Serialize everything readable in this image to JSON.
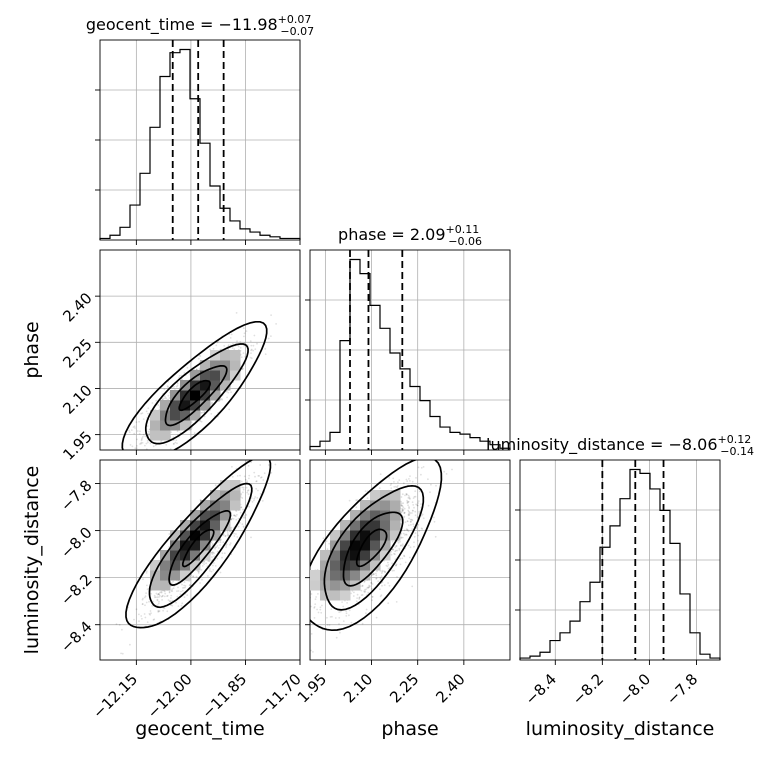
{
  "chart_data": {
    "type": "corner",
    "parameters": [
      {
        "name": "geocent_time",
        "title": {
          "prefix": "geocent_time = ",
          "median": "−11.98",
          "plus": "+0.07",
          "minus": "−0.07"
        },
        "range": [
          -12.25,
          -11.7
        ],
        "ticks": [
          "−12.15",
          "−12.00",
          "−11.85",
          "−11.70"
        ],
        "tick_values": [
          -12.15,
          -12.0,
          -11.85,
          -11.7
        ],
        "quantiles": [
          -12.05,
          -11.98,
          -11.91
        ],
        "hist_edges": [
          -12.25,
          -12.2225,
          -12.195,
          -12.1675,
          -12.14,
          -12.1125,
          -12.085,
          -12.0575,
          -12.03,
          -12.0025,
          -11.975,
          -11.9475,
          -11.92,
          -11.8925,
          -11.865,
          -11.8375,
          -11.81,
          -11.7825,
          -11.755,
          -11.7275,
          -11.7
        ],
        "hist_counts": [
          1,
          3,
          8,
          22,
          42,
          71,
          103,
          118,
          120,
          89,
          61,
          34,
          20,
          12,
          7,
          5,
          3,
          2,
          1,
          1
        ]
      },
      {
        "name": "phase",
        "title": {
          "prefix": "phase = ",
          "median": "2.09",
          "plus": "+0.11",
          "minus": "−0.06"
        },
        "range": [
          1.9,
          2.55
        ],
        "ticks": [
          "1.95",
          "2.10",
          "2.25",
          "2.40"
        ],
        "tick_values": [
          1.95,
          2.1,
          2.25,
          2.4
        ],
        "quantiles": [
          2.03,
          2.09,
          2.2
        ],
        "hist_edges": [
          1.9,
          1.9325,
          1.965,
          1.9975,
          2.03,
          2.0625,
          2.095,
          2.1275,
          2.16,
          2.1925,
          2.225,
          2.2575,
          2.29,
          2.3225,
          2.355,
          2.3875,
          2.42,
          2.4525,
          2.485,
          2.5175,
          2.55
        ],
        "hist_counts": [
          2,
          5,
          10,
          62,
          108,
          100,
          82,
          69,
          55,
          46,
          36,
          28,
          19,
          13,
          10,
          9,
          7,
          5,
          3,
          1
        ]
      },
      {
        "name": "luminosity_distance",
        "title": {
          "prefix": "luminosity_distance = ",
          "median": "−8.06",
          "plus": "+0.12",
          "minus": "−0.14"
        },
        "range": [
          -8.55,
          -7.7
        ],
        "ticks": [
          "−8.4",
          "−8.2",
          "−8.0",
          "−7.8"
        ],
        "tick_values": [
          -8.4,
          -8.2,
          -8.0,
          -7.8
        ],
        "quantiles": [
          -8.2,
          -8.06,
          -7.94
        ],
        "hist_edges": [
          -8.55,
          -8.5075,
          -8.465,
          -8.4225,
          -8.38,
          -8.3375,
          -8.295,
          -8.2525,
          -8.21,
          -8.1675,
          -8.125,
          -8.0825,
          -8.04,
          -7.9975,
          -7.955,
          -7.9125,
          -7.87,
          -7.8275,
          -7.785,
          -7.7425,
          -7.7
        ],
        "hist_counts": [
          1,
          2,
          4,
          10,
          14,
          20,
          30,
          40,
          58,
          69,
          83,
          98,
          96,
          88,
          77,
          60,
          34,
          14,
          3,
          1
        ]
      }
    ],
    "pairs": [
      {
        "x": "geocent_time",
        "y": "phase",
        "center": [
          -11.99,
          2.08
        ],
        "sigma": [
          0.07,
          0.08
        ],
        "rho": 0.82,
        "peak": [
          -11.99,
          2.08
        ]
      },
      {
        "x": "geocent_time",
        "y": "luminosity_distance",
        "center": [
          -11.98,
          -8.07
        ],
        "sigma": [
          0.07,
          0.13
        ],
        "rho": 0.86,
        "peak": [
          -11.99,
          -8.03
        ]
      },
      {
        "x": "phase",
        "y": "luminosity_distance",
        "center": [
          2.1,
          -8.07
        ],
        "sigma": [
          0.08,
          0.13
        ],
        "rho": 0.7,
        "peak": [
          2.06,
          -8.06
        ]
      }
    ],
    "grid": true
  }
}
